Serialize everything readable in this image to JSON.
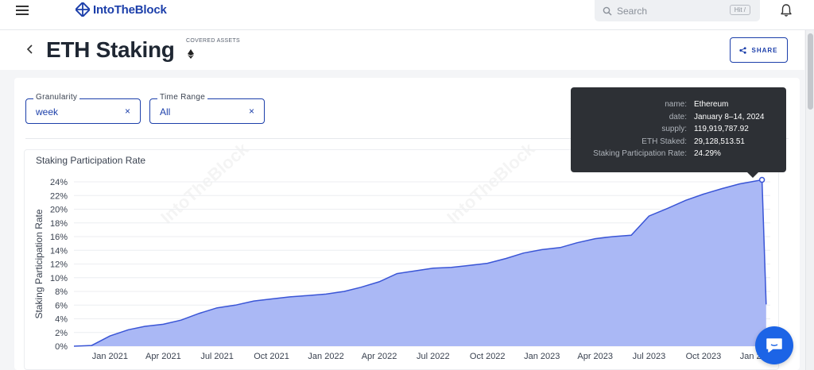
{
  "nav": {
    "brand": "IntoTheBlock",
    "search_placeholder": "Search",
    "search_shortcut": "Hit /"
  },
  "header": {
    "title": "ETH Staking",
    "covered_assets_label": "COVERED ASSETS",
    "share_label": "SHARE"
  },
  "filters": {
    "granularity": {
      "label": "Granularity",
      "value": "week"
    },
    "time_range": {
      "label": "Time Range",
      "value": "All"
    }
  },
  "chart": {
    "title": "Staking Participation Rate"
  },
  "tooltip": {
    "rows": [
      {
        "key": "name:",
        "value": "Ethereum"
      },
      {
        "key": "date:",
        "value": "January 8–14, 2024"
      },
      {
        "key": "supply:",
        "value": "119,919,787.92"
      },
      {
        "key": "ETH Staked:",
        "value": "29,128,513.51"
      },
      {
        "key": "Staking Participation Rate:",
        "value": "24.29%"
      }
    ]
  },
  "watermark_text": "IntoTheBlock",
  "colors": {
    "brand": "#1c3faa",
    "series_fill": "#aab8f5",
    "series_line": "#3a55d6",
    "tooltip_bg": "#2d3035",
    "chat_button": "#1c64e6"
  },
  "icons": {
    "menu": "hamburger-icon",
    "search": "search-icon",
    "notification": "bell-icon",
    "back": "chevron-left-icon",
    "asset": "ethereum-icon",
    "share": "share-icon",
    "clear": "close-icon",
    "chat": "chat-icon"
  },
  "chart_data": {
    "type": "area",
    "title": "Staking Participation Rate",
    "xlabel": "",
    "ylabel": "Staking Participation Rate",
    "ylim": [
      0,
      24
    ],
    "y_ticks": [
      "0%",
      "2%",
      "4%",
      "6%",
      "8%",
      "10%",
      "12%",
      "14%",
      "16%",
      "18%",
      "20%",
      "22%",
      "24%"
    ],
    "x_ticks": [
      "Jan 2021",
      "Apr 2021",
      "Jul 2021",
      "Oct 2021",
      "Jan 2022",
      "Apr 2022",
      "Jul 2022",
      "Oct 2022",
      "Jan 2023",
      "Apr 2023",
      "Jul 2023",
      "Oct 2023",
      "Jan 2024"
    ],
    "grid": true,
    "series": [
      {
        "x": [
          "2020-11-01",
          "2020-12-01",
          "2021-01-01",
          "2021-02-01",
          "2021-03-01",
          "2021-04-01",
          "2021-05-01",
          "2021-06-01",
          "2021-07-01",
          "2021-08-01",
          "2021-09-01",
          "2021-10-01",
          "2021-11-01",
          "2021-12-01",
          "2022-01-01",
          "2022-02-01",
          "2022-03-01",
          "2022-04-01",
          "2022-05-01",
          "2022-06-01",
          "2022-07-01",
          "2022-08-01",
          "2022-09-01",
          "2022-10-01",
          "2022-11-01",
          "2022-12-01",
          "2023-01-01",
          "2023-02-01",
          "2023-03-01",
          "2023-04-01",
          "2023-05-01",
          "2023-06-01",
          "2023-07-01",
          "2023-08-01",
          "2023-09-01",
          "2023-10-01",
          "2023-11-01",
          "2023-12-01",
          "2024-01-08",
          "2024-01-15"
        ],
        "values": [
          0.0,
          0.1,
          1.5,
          2.4,
          2.9,
          3.2,
          3.8,
          4.8,
          5.6,
          6.0,
          6.6,
          6.9,
          7.2,
          7.4,
          7.6,
          8.0,
          8.6,
          9.4,
          10.6,
          11.0,
          11.4,
          11.5,
          11.8,
          12.1,
          12.8,
          13.6,
          14.1,
          14.4,
          15.1,
          15.7,
          16.0,
          16.2,
          19.0,
          20.1,
          21.3,
          22.2,
          23.0,
          23.7,
          24.29,
          6.1
        ]
      }
    ],
    "highlight": {
      "date": "January 8–14, 2024",
      "value": 24.29
    }
  }
}
